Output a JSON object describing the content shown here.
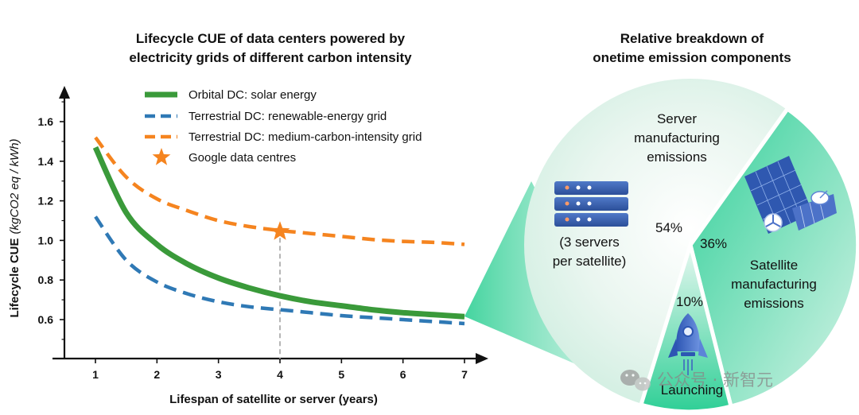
{
  "chart_data": [
    {
      "type": "line",
      "title_lines": [
        "Lifecycle CUE of data centers powered by",
        "electricity grids of different carbon intensity"
      ],
      "xlabel": "Lifespan of satellite or server (years)",
      "ylabel": "Lifecycle CUE",
      "ylabel_unit": "(kgCO2 eq / kWh)",
      "xlim": [
        0.5,
        7.5
      ],
      "ylim": [
        0.4,
        1.75
      ],
      "xticks": [
        1,
        2,
        3,
        4,
        5,
        6,
        7
      ],
      "yticks": [
        0.6,
        0.8,
        1.0,
        1.2,
        1.4,
        1.6
      ],
      "ytick_labels": [
        "0.6",
        "0.8",
        "1.0",
        "1.2",
        "1.4",
        "1.6"
      ],
      "x": [
        1,
        1.5,
        2,
        2.5,
        3,
        3.5,
        4,
        4.5,
        5,
        5.5,
        6,
        6.5,
        7
      ],
      "series": [
        {
          "name": "Orbital DC: solar energy",
          "style": "solid",
          "color": "#3a9a3a",
          "values": [
            1.47,
            1.14,
            0.98,
            0.88,
            0.81,
            0.76,
            0.72,
            0.69,
            0.67,
            0.65,
            0.635,
            0.625,
            0.615
          ]
        },
        {
          "name": "Terrestrial DC: renewable-energy grid",
          "style": "dashed",
          "color": "#2f79b5",
          "values": [
            1.12,
            0.9,
            0.79,
            0.73,
            0.69,
            0.665,
            0.65,
            0.635,
            0.62,
            0.61,
            0.6,
            0.59,
            0.58
          ]
        },
        {
          "name": "Terrestrial DC: medium-carbon-intensity grid",
          "style": "dashed",
          "color": "#f5841f",
          "values": [
            1.52,
            1.32,
            1.21,
            1.15,
            1.1,
            1.07,
            1.05,
            1.035,
            1.02,
            1.005,
            0.995,
            0.99,
            0.98
          ]
        }
      ],
      "markers": [
        {
          "name": "Google data centres",
          "x": 4,
          "y": 1.045,
          "color": "#f5841f",
          "symbol": "star"
        }
      ]
    },
    {
      "type": "pie",
      "title_lines": [
        "Relative breakdown of",
        "onetime emission components"
      ],
      "slices": [
        {
          "label_lines": [
            "Server",
            "manufacturing",
            "emissions"
          ],
          "value": 54,
          "pct_label": "54%",
          "note_lines": [
            "(3 servers",
            "per satellite)"
          ]
        },
        {
          "label_lines": [
            "Satellite",
            "manufacturing",
            "emissions"
          ],
          "value": 36,
          "pct_label": "36%"
        },
        {
          "label_lines": [
            "Launching"
          ],
          "value": 10,
          "pct_label": "10%"
        }
      ]
    }
  ],
  "watermark": "公众号 · 新智元",
  "icons": [
    "server-rack-icon",
    "satellite-icon",
    "rocket-icon",
    "wechat-icon"
  ]
}
